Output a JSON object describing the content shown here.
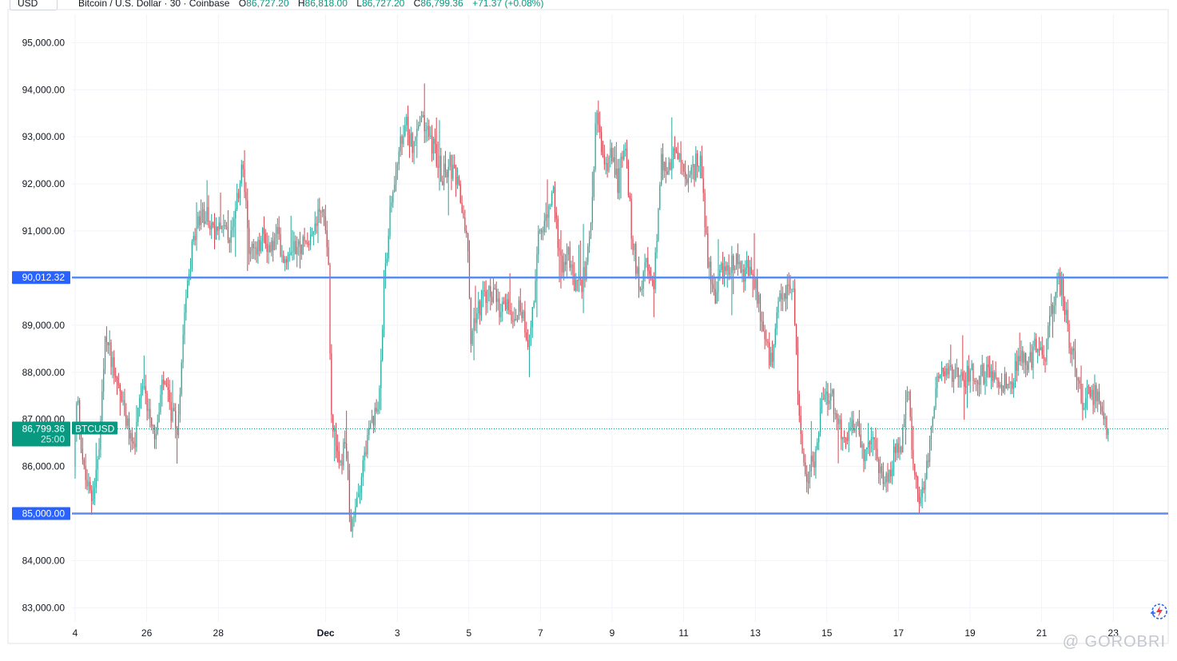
{
  "header": {
    "currency": "USD",
    "symbol_title": "Bitcoin / U.S. Dollar · 30 · Coinbase",
    "open_label": "O",
    "open_value": "86,727.20",
    "high_label": "H",
    "high_value": "86,818.00",
    "low_label": "L",
    "low_value": "86,727.20",
    "close_label": "C",
    "close_value": "86,799.36",
    "change": "+71.37 (+0.08%)"
  },
  "colors": {
    "up": "#089981",
    "down": "#f23645",
    "candle_up": "#26a69a",
    "candle_down": "#d9434f",
    "level_line": "#5b8def",
    "level_badge": "#2962ff",
    "price_badge": "#089981",
    "grid": "#f0f3fa"
  },
  "watermark": "@ GOROBRI",
  "chart_data": {
    "type": "candlestick",
    "symbol": "BTCUSD",
    "interval": "30",
    "ylim": [
      82700,
      95600
    ],
    "y_ticks": [
      {
        "value": 95000,
        "label": "95,000.00"
      },
      {
        "value": 94000,
        "label": "94,000.00"
      },
      {
        "value": 93000,
        "label": "93,000.00"
      },
      {
        "value": 92000,
        "label": "92,000.00"
      },
      {
        "value": 91000,
        "label": "91,000.00"
      },
      {
        "value": 89000,
        "label": "89,000.00"
      },
      {
        "value": 88000,
        "label": "88,000.00"
      },
      {
        "value": 87000,
        "label": "87,000.00"
      },
      {
        "value": 86000,
        "label": "86,000.00"
      },
      {
        "value": 84000,
        "label": "84,000.00"
      },
      {
        "value": 83000,
        "label": "83,000.00"
      }
    ],
    "x_ticks": [
      {
        "day": 0,
        "label": "4"
      },
      {
        "day": 1,
        "label": "26"
      },
      {
        "day": 2,
        "label": "28"
      },
      {
        "day": 3.5,
        "label": "Dec",
        "bold": true
      },
      {
        "day": 4.5,
        "label": "3"
      },
      {
        "day": 5.5,
        "label": "5"
      },
      {
        "day": 6.5,
        "label": "7"
      },
      {
        "day": 7.5,
        "label": "9"
      },
      {
        "day": 8.5,
        "label": "11"
      },
      {
        "day": 9.5,
        "label": "13"
      },
      {
        "day": 10.5,
        "label": "15"
      },
      {
        "day": 11.5,
        "label": "17"
      },
      {
        "day": 12.5,
        "label": "19"
      },
      {
        "day": 13.5,
        "label": "21"
      },
      {
        "day": 14.5,
        "label": "23"
      }
    ],
    "horizontal_levels": [
      {
        "value": 90012.32,
        "label": "90,012.32"
      },
      {
        "value": 85000.0,
        "label": "85,000.00"
      }
    ],
    "last_price": {
      "value": 86799.36,
      "label": "86,799.36",
      "countdown": "25:00",
      "symbol_tag": "BTCUSD"
    },
    "price_path": [
      [
        0,
        86000
      ],
      [
        0.05,
        87500
      ],
      [
        0.15,
        85800
      ],
      [
        0.25,
        85300
      ],
      [
        0.35,
        86200
      ],
      [
        0.45,
        88800
      ],
      [
        0.55,
        88200
      ],
      [
        0.65,
        87600
      ],
      [
        0.75,
        86800
      ],
      [
        0.85,
        86400
      ],
      [
        0.95,
        87600
      ],
      [
        1.05,
        87300
      ],
      [
        1.15,
        86600
      ],
      [
        1.25,
        87800
      ],
      [
        1.35,
        87200
      ],
      [
        1.45,
        86700
      ],
      [
        1.55,
        89500
      ],
      [
        1.65,
        90600
      ],
      [
        1.75,
        91200
      ],
      [
        1.85,
        91400
      ],
      [
        1.95,
        91000
      ],
      [
        2.05,
        91300
      ],
      [
        2.15,
        90800
      ],
      [
        2.25,
        91100
      ],
      [
        2.35,
        92500
      ],
      [
        2.45,
        90700
      ],
      [
        2.55,
        90500
      ],
      [
        2.65,
        90900
      ],
      [
        2.75,
        90600
      ],
      [
        2.85,
        90900
      ],
      [
        2.95,
        90400
      ],
      [
        3.05,
        90800
      ],
      [
        3.15,
        90600
      ],
      [
        3.25,
        90900
      ],
      [
        3.35,
        91000
      ],
      [
        3.45,
        91600
      ],
      [
        3.55,
        90800
      ],
      [
        3.6,
        87200
      ],
      [
        3.7,
        85900
      ],
      [
        3.8,
        86500
      ],
      [
        3.88,
        84500
      ],
      [
        3.95,
        85200
      ],
      [
        4.05,
        86200
      ],
      [
        4.15,
        86800
      ],
      [
        4.25,
        87200
      ],
      [
        4.35,
        90200
      ],
      [
        4.45,
        91800
      ],
      [
        4.55,
        92700
      ],
      [
        4.65,
        93200
      ],
      [
        4.75,
        92800
      ],
      [
        4.85,
        93400
      ],
      [
        4.95,
        93100
      ],
      [
        5.05,
        92700
      ],
      [
        5.15,
        92200
      ],
      [
        5.25,
        92400
      ],
      [
        5.35,
        92000
      ],
      [
        5.45,
        91300
      ],
      [
        5.5,
        90700
      ],
      [
        5.55,
        88800
      ],
      [
        5.65,
        89400
      ],
      [
        5.75,
        89600
      ],
      [
        5.85,
        89700
      ],
      [
        5.95,
        89200
      ],
      [
        6.05,
        89500
      ],
      [
        6.15,
        89200
      ],
      [
        6.25,
        89400
      ],
      [
        6.35,
        88700
      ],
      [
        6.4,
        89200
      ],
      [
        6.5,
        90900
      ],
      [
        6.6,
        91200
      ],
      [
        6.7,
        91800
      ],
      [
        6.8,
        90300
      ],
      [
        6.9,
        90500
      ],
      [
        7.0,
        89800
      ],
      [
        7.1,
        89900
      ],
      [
        7.2,
        90600
      ],
      [
        7.3,
        93500
      ],
      [
        7.4,
        92300
      ],
      [
        7.5,
        92600
      ],
      [
        7.6,
        92000
      ],
      [
        7.7,
        92900
      ],
      [
        7.8,
        90800
      ],
      [
        7.9,
        89900
      ],
      [
        8.0,
        90200
      ],
      [
        8.1,
        89700
      ],
      [
        8.2,
        92500
      ],
      [
        8.3,
        92200
      ],
      [
        8.4,
        92700
      ],
      [
        8.5,
        92400
      ],
      [
        8.55,
        91900
      ],
      [
        8.65,
        92200
      ],
      [
        8.75,
        92700
      ],
      [
        8.85,
        90500
      ],
      [
        8.95,
        89600
      ],
      [
        9.05,
        90100
      ],
      [
        9.15,
        90300
      ],
      [
        9.25,
        90400
      ],
      [
        9.35,
        90100
      ],
      [
        9.45,
        90200
      ],
      [
        9.55,
        89700
      ],
      [
        9.65,
        88700
      ],
      [
        9.75,
        88100
      ],
      [
        9.85,
        89400
      ],
      [
        9.95,
        89700
      ],
      [
        10.05,
        89800
      ],
      [
        10.15,
        86600
      ],
      [
        10.25,
        85800
      ],
      [
        10.35,
        86200
      ],
      [
        10.45,
        87200
      ],
      [
        10.55,
        87600
      ],
      [
        10.65,
        87200
      ],
      [
        10.75,
        86400
      ],
      [
        10.85,
        86700
      ],
      [
        10.95,
        87000
      ],
      [
        11.05,
        86100
      ],
      [
        11.15,
        86500
      ],
      [
        11.25,
        86000
      ],
      [
        11.35,
        85600
      ],
      [
        11.45,
        86200
      ],
      [
        11.55,
        86400
      ],
      [
        11.65,
        87800
      ],
      [
        11.75,
        85600
      ],
      [
        11.85,
        85300
      ],
      [
        11.95,
        86400
      ],
      [
        12.05,
        87800
      ],
      [
        12.15,
        88000
      ],
      [
        12.25,
        87900
      ],
      [
        12.35,
        88100
      ],
      [
        12.45,
        87900
      ],
      [
        12.55,
        88000
      ],
      [
        12.65,
        87900
      ],
      [
        12.75,
        88000
      ],
      [
        12.85,
        88000
      ],
      [
        12.95,
        87800
      ],
      [
        13.05,
        87700
      ],
      [
        13.15,
        88000
      ],
      [
        13.25,
        88400
      ],
      [
        13.35,
        88200
      ],
      [
        13.45,
        88600
      ],
      [
        13.55,
        88200
      ],
      [
        13.65,
        89200
      ],
      [
        13.75,
        89900
      ],
      [
        13.8,
        89800
      ],
      [
        13.9,
        88700
      ],
      [
        14.0,
        88200
      ],
      [
        14.1,
        87300
      ],
      [
        14.2,
        87600
      ],
      [
        14.3,
        87400
      ],
      [
        14.4,
        86900
      ],
      [
        14.45,
        86800
      ]
    ]
  }
}
